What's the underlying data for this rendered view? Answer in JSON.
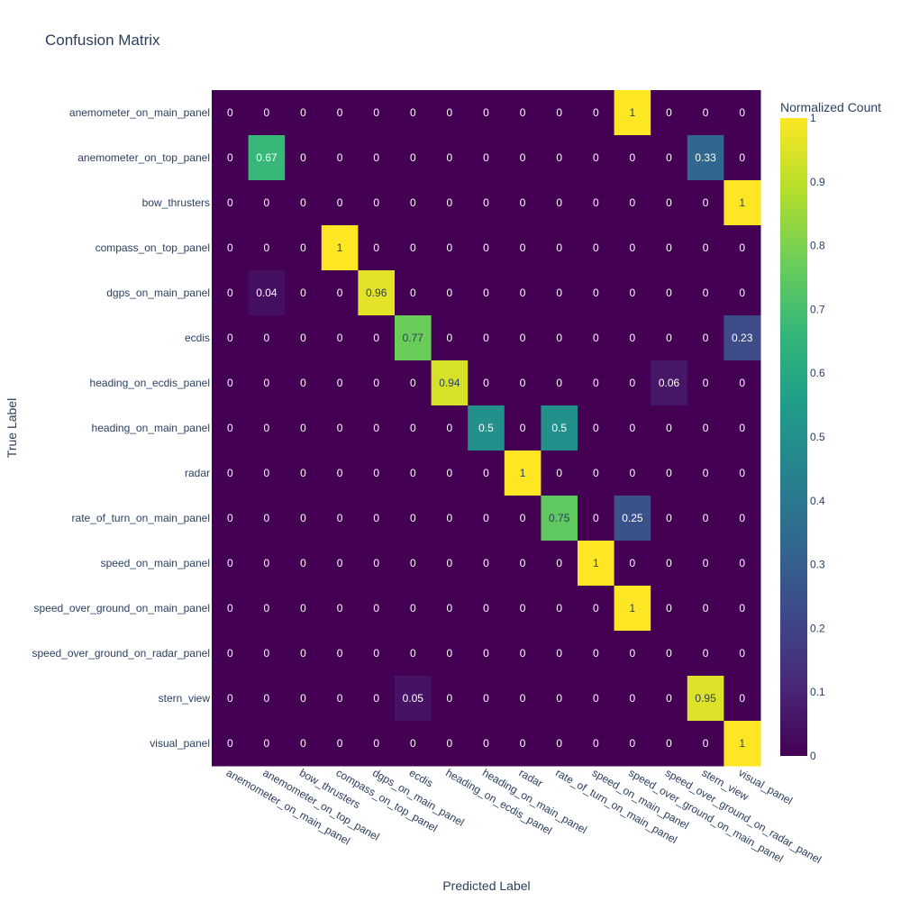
{
  "chart_data": {
    "type": "heatmap",
    "title": "Confusion Matrix",
    "xlabel": "Predicted Label",
    "ylabel": "True Label",
    "colorbar": {
      "title": "Normalized Count",
      "ticks": [
        "0",
        "0.1",
        "0.2",
        "0.3",
        "0.4",
        "0.5",
        "0.6",
        "0.7",
        "0.8",
        "0.9",
        "1"
      ],
      "range": [
        0,
        1
      ],
      "colorscale": "viridis"
    },
    "labels": [
      "anemometer_on_main_panel",
      "anemometer_on_top_panel",
      "bow_thrusters",
      "compass_on_top_panel",
      "dgps_on_main_panel",
      "ecdis",
      "heading_on_ecdis_panel",
      "heading_on_main_panel",
      "radar",
      "rate_of_turn_on_main_panel",
      "speed_on_main_panel",
      "speed_over_ground_on_main_panel",
      "speed_over_ground_on_radar_panel",
      "stern_view",
      "visual_panel"
    ],
    "z": [
      [
        0,
        0,
        0,
        0,
        0,
        0,
        0,
        0,
        0,
        0,
        0,
        1,
        0,
        0,
        0
      ],
      [
        0,
        0.67,
        0,
        0,
        0,
        0,
        0,
        0,
        0,
        0,
        0,
        0,
        0,
        0.33,
        0
      ],
      [
        0,
        0,
        0,
        0,
        0,
        0,
        0,
        0,
        0,
        0,
        0,
        0,
        0,
        0,
        1
      ],
      [
        0,
        0,
        0,
        1,
        0,
        0,
        0,
        0,
        0,
        0,
        0,
        0,
        0,
        0,
        0
      ],
      [
        0,
        0.04,
        0,
        0,
        0.96,
        0,
        0,
        0,
        0,
        0,
        0,
        0,
        0,
        0,
        0
      ],
      [
        0,
        0,
        0,
        0,
        0,
        0.77,
        0,
        0,
        0,
        0,
        0,
        0,
        0,
        0,
        0.23
      ],
      [
        0,
        0,
        0,
        0,
        0,
        0,
        0.94,
        0,
        0,
        0,
        0,
        0,
        0.06,
        0,
        0
      ],
      [
        0,
        0,
        0,
        0,
        0,
        0,
        0,
        0.5,
        0,
        0.5,
        0,
        0,
        0,
        0,
        0
      ],
      [
        0,
        0,
        0,
        0,
        0,
        0,
        0,
        0,
        1,
        0,
        0,
        0,
        0,
        0,
        0
      ],
      [
        0,
        0,
        0,
        0,
        0,
        0,
        0,
        0,
        0,
        0.75,
        0,
        0.25,
        0,
        0,
        0
      ],
      [
        0,
        0,
        0,
        0,
        0,
        0,
        0,
        0,
        0,
        0,
        1,
        0,
        0,
        0,
        0
      ],
      [
        0,
        0,
        0,
        0,
        0,
        0,
        0,
        0,
        0,
        0,
        0,
        1,
        0,
        0,
        0
      ],
      [
        0,
        0,
        0,
        0,
        0,
        0,
        0,
        0,
        0,
        0,
        0,
        0,
        0,
        0,
        0
      ],
      [
        0,
        0,
        0,
        0,
        0,
        0.05,
        0,
        0,
        0,
        0,
        0,
        0,
        0,
        0.95,
        0
      ],
      [
        0,
        0,
        0,
        0,
        0,
        0,
        0,
        0,
        0,
        0,
        0,
        0,
        0,
        0,
        1
      ]
    ]
  }
}
